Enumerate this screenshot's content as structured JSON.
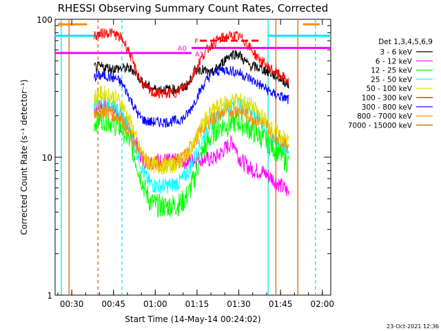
{
  "chart_data": {
    "type": "line",
    "title": "RHESSI Observing Summary Count Rates, Corrected",
    "xlabel": "Start Time (14-May-14 00:24:02)",
    "ylabel": "Corrected Count Rate (s⁻¹ detector⁻¹)",
    "x_range_minutes": [
      0,
      99
    ],
    "ylim": [
      1,
      100
    ],
    "yscale": "log",
    "x_ticks": [
      "00:30",
      "00:45",
      "01:00",
      "01:15",
      "01:30",
      "01:45",
      "02:00"
    ],
    "x_tick_minutes": [
      5.97,
      20.97,
      35.97,
      50.97,
      65.97,
      80.97,
      95.97
    ],
    "y_ticks": [
      "1",
      "10",
      "100"
    ],
    "y_tick_values": [
      1,
      10,
      100
    ],
    "legend_title": "Det 1,3,4,5,6,9",
    "legend_position": "right",
    "x_minutes": [
      14,
      16,
      18,
      20,
      22,
      24,
      26,
      28,
      30,
      32,
      34,
      36,
      38,
      40,
      42,
      44,
      46,
      48,
      50,
      52,
      54,
      56,
      58,
      60,
      62,
      64,
      66,
      68,
      70,
      72,
      74,
      76,
      78,
      80,
      82,
      84
    ],
    "series": [
      {
        "name": "3 - 6 keV",
        "color": "#000000",
        "values": [
          45,
          45,
          45,
          44,
          44,
          44,
          44,
          43,
          38,
          34,
          32,
          31,
          31,
          31,
          31,
          31,
          32,
          34,
          42,
          44,
          42,
          40,
          44,
          48,
          54,
          56,
          56,
          50,
          46,
          45,
          44,
          42,
          40,
          38,
          36,
          33
        ]
      },
      {
        "name": "6 - 12 keV",
        "color": "#ff00ff",
        "values": [
          22,
          24,
          24,
          23,
          22,
          20,
          17,
          14,
          11,
          9.5,
          9.2,
          9.5,
          9.4,
          9.5,
          9.2,
          9.6,
          9.3,
          9.4,
          9.6,
          9.8,
          9.7,
          9.6,
          10,
          11,
          12,
          13,
          10,
          9.0,
          8.3,
          8.0,
          7.9,
          7.5,
          7.0,
          6.5,
          6.0,
          5.5
        ]
      },
      {
        "name": "12 - 25 keV",
        "color": "#00ff00",
        "values": [
          18,
          19,
          19,
          18,
          17,
          16,
          14,
          11,
          8,
          6.0,
          4.8,
          4.5,
          4.4,
          4.4,
          4.5,
          4.5,
          4.8,
          5.5,
          7.0,
          9.5,
          12,
          14,
          16,
          17,
          17,
          18,
          18,
          17,
          16,
          15,
          14,
          13,
          12,
          11,
          10,
          9
        ]
      },
      {
        "name": "25 - 50 keV",
        "color": "#00ffff",
        "values": [
          23,
          25,
          25,
          24,
          22,
          20,
          17,
          13,
          10,
          7.5,
          6.5,
          6.2,
          6.2,
          6.2,
          6.3,
          6.5,
          7.0,
          8.0,
          10,
          12,
          15,
          18,
          20,
          22,
          23,
          24,
          24,
          23,
          22,
          20,
          18,
          16,
          14,
          13,
          12,
          11
        ]
      },
      {
        "name": "50 - 100 keV",
        "color": "#e0e000",
        "values": [
          27,
          29,
          29,
          28,
          27,
          24,
          20,
          16,
          12,
          10,
          9,
          8.6,
          8.6,
          8.6,
          8.7,
          9.0,
          9.6,
          11,
          13,
          16,
          19,
          21,
          23,
          24,
          25,
          26,
          26,
          25,
          24,
          22,
          20,
          18,
          16,
          15,
          14,
          13
        ]
      },
      {
        "name": "100 - 300 keV",
        "color": "#ff0000",
        "values": [
          76,
          78,
          80,
          80,
          77,
          72,
          62,
          48,
          38,
          33,
          30,
          29,
          29,
          29,
          29,
          30,
          32,
          35,
          41,
          50,
          58,
          65,
          70,
          73,
          75,
          76,
          75,
          70,
          62,
          55,
          50,
          46,
          43,
          40,
          38,
          35
        ]
      },
      {
        "name": "300 - 800 keV",
        "color": "#0000ff",
        "values": [
          38,
          39,
          39,
          38,
          37,
          34,
          29,
          24,
          20,
          18.5,
          18,
          18,
          18,
          18,
          18.2,
          18.5,
          19,
          21,
          25,
          30,
          35,
          40,
          42,
          43,
          43,
          42,
          41,
          39,
          37,
          35,
          33,
          31,
          29,
          28,
          27,
          26
        ]
      },
      {
        "name": "800 - 7000 keV",
        "color": "#ff8c00",
        "values": [
          21,
          22,
          22,
          21,
          20,
          19,
          16,
          13,
          11,
          9.6,
          9.1,
          9.0,
          9.0,
          9.0,
          9.1,
          9.3,
          9.8,
          11,
          13,
          15,
          17,
          19,
          20,
          21,
          22,
          22,
          22,
          21,
          20,
          19,
          18,
          17,
          15,
          14,
          13,
          12
        ]
      },
      {
        "name": "7000 - 15000 keV",
        "color": "#c06000",
        "values": []
      }
    ],
    "annotations": [
      {
        "text": "S",
        "color": "#ff8c00"
      },
      {
        "text": "A0",
        "color": "#ff00ff"
      },
      {
        "text": "A1",
        "color": "#ff00ff"
      },
      {
        "text": "F",
        "color": "#ff0000"
      }
    ],
    "timestamp": "23-Oct-2021 12:36"
  }
}
